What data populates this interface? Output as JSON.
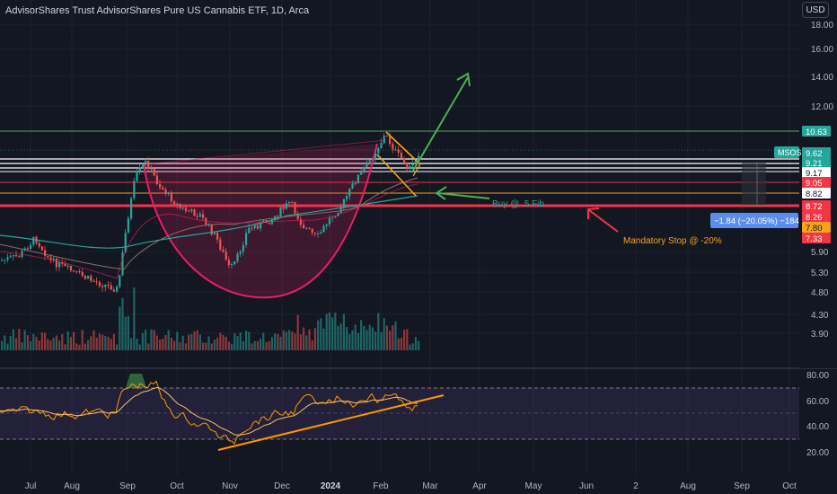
{
  "header": {
    "title": "AdvisorShares Trust AdvisorShares Pure US Cannabis ETF, 1D, Arca",
    "currency_button": "USD"
  },
  "price_axis": {
    "ticks": [
      "18.00",
      "16.00",
      "14.00",
      "12.00",
      "5.90",
      "5.30",
      "4.80",
      "4.30",
      "3.90"
    ]
  },
  "price_labels": [
    {
      "text": "10.63",
      "bg": "#26a69a",
      "fg": "#ffffff"
    },
    {
      "text": "MSOS",
      "bg": "#26a69a",
      "fg": "#ffffff"
    },
    {
      "text": "9.62",
      "bg": "#26a69a",
      "fg": "#ffffff"
    },
    {
      "text": "9.21",
      "bg": "#26a69a",
      "fg": "#ffffff"
    },
    {
      "text": "9.17",
      "bg": "#ffffff",
      "fg": "#131722"
    },
    {
      "text": "9.05",
      "bg": "#f23645",
      "fg": "#ffffff"
    },
    {
      "text": "8.82",
      "bg": "#ffffff",
      "fg": "#131722"
    },
    {
      "text": "8.72",
      "bg": "#f23645",
      "fg": "#ffffff"
    },
    {
      "text": "8.26",
      "bg": "#f23645",
      "fg": "#ffffff"
    },
    {
      "text": "7.80",
      "bg": "#f7a21b",
      "fg": "#131722"
    },
    {
      "text": "7.33",
      "bg": "#f23645",
      "fg": "#ffffff"
    }
  ],
  "measure_label": "−1.84 (−20.05%) −184",
  "annotations": {
    "buy": "Buy @ .5 Fib",
    "stop": "Mandatory Stop @ -20%"
  },
  "rsi_axis": {
    "ticks": [
      "80.00",
      "60.00",
      "40.00",
      "20.00"
    ]
  },
  "time_axis": {
    "labels": [
      "Jul",
      "Aug",
      "Sep",
      "Oct",
      "Nov",
      "Dec",
      "2024",
      "Feb",
      "Mar",
      "Apr",
      "May",
      "Jun",
      "2",
      "Aug",
      "Sep",
      "Oct"
    ]
  },
  "colors": {
    "bg": "#131722",
    "up": "#26a69a",
    "down": "#ef5350",
    "grid": "#1e222d",
    "text": "#b2b5be",
    "red_line": "#f23645",
    "orange": "#f7a21b",
    "green_arrow": "#4caf50",
    "rsi": "#ff9800",
    "rsi_band": "#7e57c2"
  }
}
